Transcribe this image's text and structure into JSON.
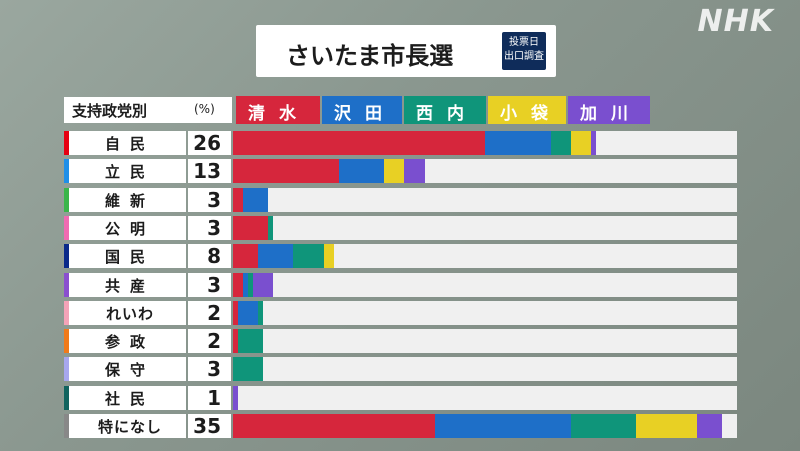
{
  "brand": {
    "logo_text": "NHK"
  },
  "title": {
    "main": "さいたま市長選",
    "badge_line1": "投票日",
    "badge_line2": "出口調査"
  },
  "legend": {
    "party_label": "支持政党別",
    "unit_label": "(%)"
  },
  "colors": {
    "清水": "#d6263c",
    "沢田": "#1e6fc8",
    "西内": "#0f957a",
    "小袋": "#e8d024",
    "加川": "#7a4fcf"
  },
  "chart_data": {
    "type": "bar",
    "stacked": true,
    "orientation": "horizontal",
    "title": "さいたま市長選",
    "subtitle": "投票日 出口調査",
    "row_header": "支持政党別",
    "unit": "(%)",
    "candidates": [
      "清水",
      "沢田",
      "西内",
      "小袋",
      "加川"
    ],
    "xlim": [
      0,
      100
    ],
    "categories": [
      "自民",
      "立民",
      "維新",
      "公明",
      "国民",
      "共産",
      "れいわ",
      "参政",
      "保守",
      "社民",
      "特になし"
    ],
    "party_share": [
      26,
      13,
      3,
      3,
      8,
      3,
      2,
      2,
      3,
      1,
      35
    ],
    "party_colors": [
      "#e60012",
      "#1f8fe8",
      "#3ab54a",
      "#f06bb2",
      "#0a2a8a",
      "#8a4fcf",
      "#f4a3b8",
      "#f07a1a",
      "#a7a7ee",
      "#11635e",
      "#888888"
    ],
    "series": [
      {
        "name": "清水",
        "values": [
          50,
          21,
          2,
          7,
          5,
          2,
          1,
          1,
          0,
          0,
          40
        ]
      },
      {
        "name": "沢田",
        "values": [
          13,
          9,
          5,
          0,
          7,
          1,
          4,
          0,
          0,
          0,
          27
        ]
      },
      {
        "name": "西内",
        "values": [
          4,
          0,
          0,
          1,
          6,
          1,
          1,
          5,
          6,
          0,
          13
        ]
      },
      {
        "name": "小袋",
        "values": [
          4,
          4,
          0,
          0,
          2,
          0,
          0,
          0,
          0,
          0,
          12
        ]
      },
      {
        "name": "加川",
        "values": [
          1,
          4,
          0,
          0,
          0,
          4,
          0,
          0,
          0,
          1,
          5
        ]
      }
    ]
  }
}
